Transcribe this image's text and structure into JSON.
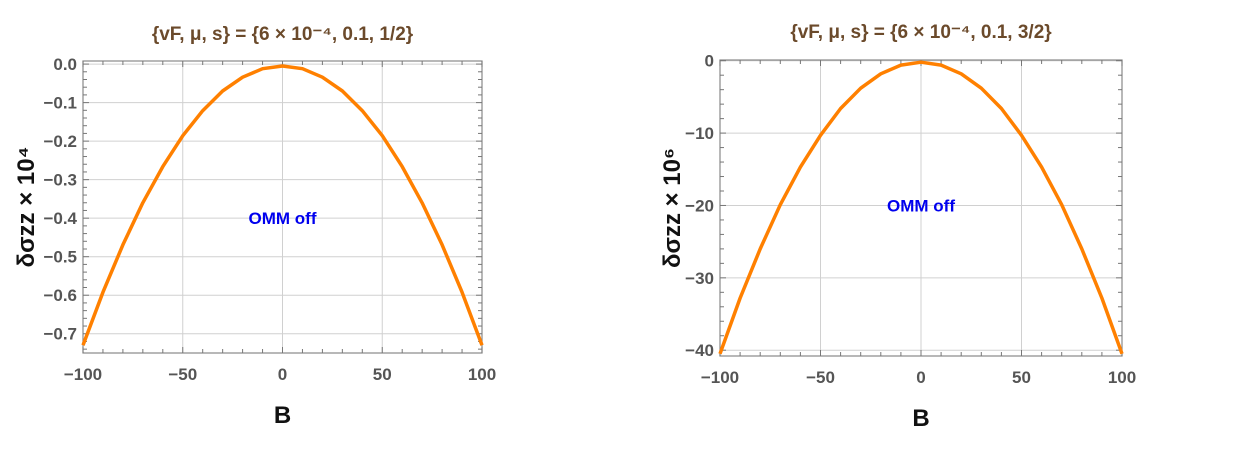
{
  "chart_data": [
    {
      "type": "line",
      "title": "{vF, μ, s} = {6 × 10⁻⁴, 0.1, 1/2}",
      "title_parts": {
        "pre": "{v",
        "sub": "F",
        "mid": ", μ, s} = {6 × 10",
        "sup": "−4",
        "post": ", 0.1, 1/2}"
      },
      "xlabel": "B",
      "ylabel": "δσzz × 10⁴",
      "ylabel_parts": {
        "main": "δσ",
        "sub": "zz",
        "times": " × 10",
        "sup": "4"
      },
      "annotation": "OMM off",
      "xlim": [
        -100,
        100
      ],
      "ylim": [
        -0.75,
        0.008
      ],
      "xticks": [
        -100,
        -50,
        0,
        50,
        100
      ],
      "xtick_labels": [
        "−100",
        "−50",
        "0",
        "50",
        "100"
      ],
      "yticks": [
        0,
        -0.1,
        -0.2,
        -0.3,
        -0.4,
        -0.5,
        -0.6,
        -0.7
      ],
      "ytick_labels": [
        "0.0",
        "−0.1",
        "−0.2",
        "−0.3",
        "−0.4",
        "−0.5",
        "−0.6",
        "−0.7"
      ],
      "xminor": 10,
      "yminor": 0.02,
      "grid": true,
      "color": "#ff8000",
      "x": [
        -100,
        -90,
        -80,
        -70,
        -60,
        -50,
        -40,
        -30,
        -20,
        -10,
        0,
        10,
        20,
        30,
        40,
        50,
        60,
        70,
        80,
        90,
        100
      ],
      "y": [
        -0.73,
        -0.592,
        -0.469,
        -0.36,
        -0.266,
        -0.186,
        -0.121,
        -0.07,
        -0.034,
        -0.012,
        -0.005,
        -0.012,
        -0.034,
        -0.07,
        -0.121,
        -0.186,
        -0.266,
        -0.36,
        -0.469,
        -0.592,
        -0.73
      ]
    },
    {
      "type": "line",
      "title": "{vF, μ, s} = {6 × 10⁻⁴, 0.1, 3/2}",
      "title_parts": {
        "pre": "{v",
        "sub": "F",
        "mid": ", μ, s} = {6 × 10",
        "sup": "−4",
        "post": ", 0.1, 3/2}"
      },
      "xlabel": "B",
      "ylabel": "δσzz × 10⁶",
      "ylabel_parts": {
        "main": "δσ",
        "sub": "zz",
        "times": " × 10",
        "sup": "6"
      },
      "annotation": "OMM off",
      "xlim": [
        -100,
        100
      ],
      "ylim": [
        -40.8,
        0.1
      ],
      "xticks": [
        -100,
        -50,
        0,
        50,
        100
      ],
      "xtick_labels": [
        "−100",
        "−50",
        "0",
        "50",
        "100"
      ],
      "yticks": [
        0,
        -10,
        -20,
        -30,
        -40
      ],
      "ytick_labels": [
        "0",
        "−10",
        "−20",
        "−30",
        "−40"
      ],
      "xminor": 10,
      "yminor": 2,
      "grid": true,
      "color": "#ff8000",
      "x": [
        -100,
        -90,
        -80,
        -70,
        -60,
        -50,
        -40,
        -30,
        -20,
        -10,
        0,
        10,
        20,
        30,
        40,
        50,
        60,
        70,
        80,
        90,
        100
      ],
      "y": [
        -40.5,
        -32.8,
        -26.0,
        -19.9,
        -14.7,
        -10.3,
        -6.6,
        -3.8,
        -1.8,
        -0.6,
        -0.2,
        -0.6,
        -1.8,
        -3.8,
        -6.6,
        -10.3,
        -14.7,
        -19.9,
        -26.0,
        -32.8,
        -40.5
      ]
    }
  ]
}
